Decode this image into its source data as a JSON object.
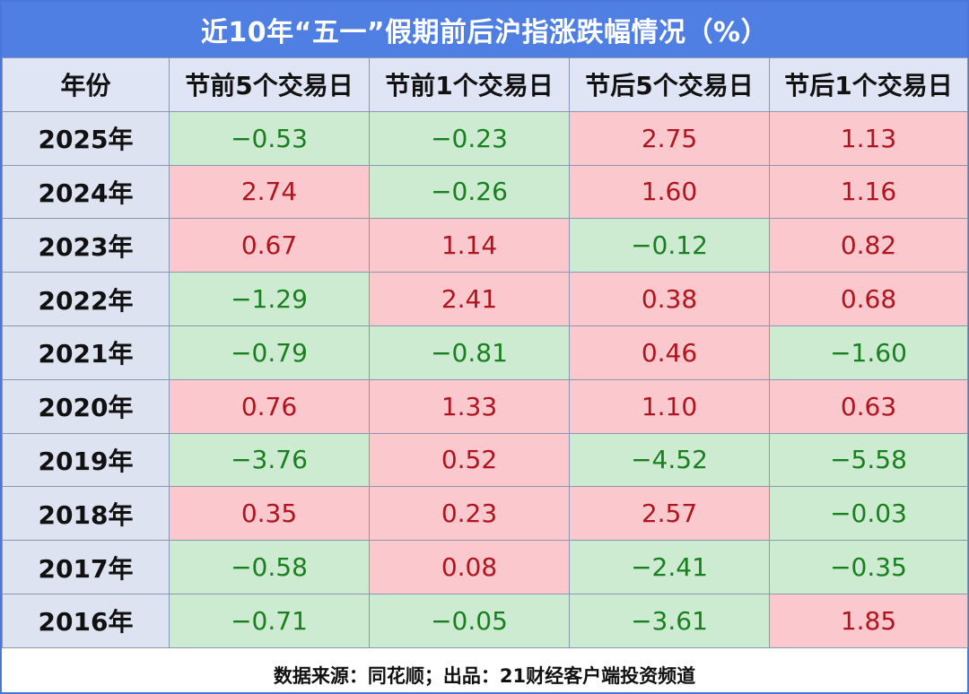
{
  "title": "近10年“五一”假期前后沪指涨跌幅情况（%）",
  "footer": "数据来源：同花顺；出品：21财经客户端投资频道",
  "colors": {
    "header_bg": "#4f7fe3",
    "positive_bg": "#fbc8cd",
    "positive_text": "#b0141e",
    "negative_bg": "#cdebd0",
    "negative_text": "#18801f"
  },
  "chart_data": {
    "type": "table",
    "title": "近10年“五一”假期前后沪指涨跌幅情况（%）",
    "columns": [
      "年份",
      "节前5个交易日",
      "节前1个交易日",
      "节后5个交易日",
      "节后1个交易日"
    ],
    "rows": [
      {
        "year": "2025年",
        "values": [
          "−0.53",
          "−0.23",
          "2.75",
          "1.13"
        ]
      },
      {
        "year": "2024年",
        "values": [
          "2.74",
          "−0.26",
          "1.60",
          "1.16"
        ]
      },
      {
        "year": "2023年",
        "values": [
          "0.67",
          "1.14",
          "−0.12",
          "0.82"
        ]
      },
      {
        "year": "2022年",
        "values": [
          "−1.29",
          "2.41",
          "0.38",
          "0.68"
        ]
      },
      {
        "year": "2021年",
        "values": [
          "−0.79",
          "−0.81",
          "0.46",
          "−1.60"
        ]
      },
      {
        "year": "2020年",
        "values": [
          "0.76",
          "1.33",
          "1.10",
          "0.63"
        ]
      },
      {
        "year": "2019年",
        "values": [
          "−3.76",
          "0.52",
          "−4.52",
          "−5.58"
        ]
      },
      {
        "year": "2018年",
        "values": [
          "0.35",
          "0.23",
          "2.57",
          "−0.03"
        ]
      },
      {
        "year": "2017年",
        "values": [
          "−0.58",
          "0.08",
          "−2.41",
          "−0.35"
        ]
      },
      {
        "year": "2016年",
        "values": [
          "−0.71",
          "−0.05",
          "−3.61",
          "1.85"
        ]
      }
    ]
  }
}
